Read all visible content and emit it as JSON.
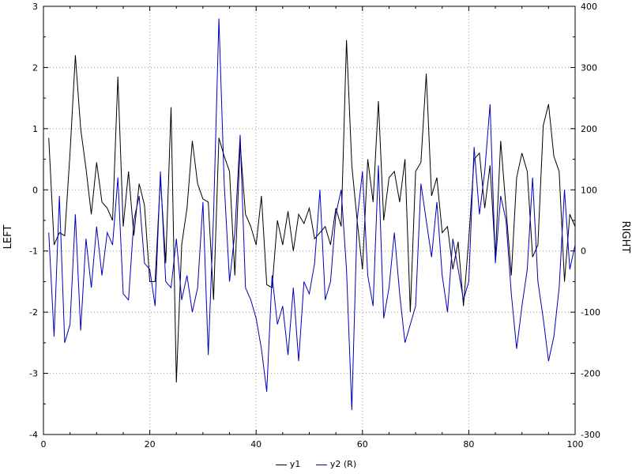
{
  "chart": {
    "left_axis_title": "LEFT",
    "right_axis_title": "RIGHT",
    "legend": [
      {
        "label": "y1",
        "color": "#000000"
      },
      {
        "label": "y2 (R)",
        "color": "#0000bb"
      }
    ],
    "grid_color": "#999999",
    "border_color": "#000000",
    "background": "#ffffff"
  },
  "chart_data": {
    "type": "line",
    "title": "",
    "xlabel": "",
    "left_ylabel": "LEFT",
    "right_ylabel": "RIGHT",
    "xlim": [
      0,
      100
    ],
    "left_ylim": [
      -4,
      3
    ],
    "right_ylim": [
      -300,
      400
    ],
    "x_ticks": [
      0,
      20,
      40,
      60,
      80,
      100
    ],
    "left_ticks": [
      -4,
      -3,
      -2,
      -1,
      0,
      1,
      2,
      3
    ],
    "right_ticks": [
      -300,
      -200,
      -100,
      0,
      100,
      200,
      300,
      400
    ],
    "grid": true,
    "legend_position": "bottom",
    "x": [
      1,
      2,
      3,
      4,
      5,
      6,
      7,
      8,
      9,
      10,
      11,
      12,
      13,
      14,
      15,
      16,
      17,
      18,
      19,
      20,
      21,
      22,
      23,
      24,
      25,
      26,
      27,
      28,
      29,
      30,
      31,
      32,
      33,
      34,
      35,
      36,
      37,
      38,
      39,
      40,
      41,
      42,
      43,
      44,
      45,
      46,
      47,
      48,
      49,
      50,
      51,
      52,
      53,
      54,
      55,
      56,
      57,
      58,
      59,
      60,
      61,
      62,
      63,
      64,
      65,
      66,
      67,
      68,
      69,
      70,
      71,
      72,
      73,
      74,
      75,
      76,
      77,
      78,
      79,
      80,
      81,
      82,
      83,
      84,
      85,
      86,
      87,
      88,
      89,
      90,
      91,
      92,
      93,
      94,
      95,
      96,
      97,
      98,
      99,
      100
    ],
    "series": [
      {
        "name": "y1",
        "axis": "left",
        "color": "#000000",
        "values": [
          0.85,
          -0.9,
          -0.7,
          -0.75,
          0.6,
          2.2,
          1.0,
          0.35,
          -0.4,
          0.45,
          -0.2,
          -0.3,
          -0.5,
          1.85,
          -0.6,
          0.3,
          -0.75,
          0.1,
          -0.25,
          -1.5,
          -1.5,
          0.2,
          -1.2,
          1.35,
          -3.15,
          -0.9,
          -0.3,
          0.8,
          0.1,
          -0.15,
          -0.2,
          -1.8,
          0.85,
          0.55,
          0.3,
          -1.4,
          0.75,
          -0.4,
          -0.6,
          -0.9,
          -0.1,
          -1.55,
          -1.6,
          -0.5,
          -0.9,
          -0.35,
          -1.0,
          -0.4,
          -0.55,
          -0.3,
          -0.8,
          -0.7,
          -0.6,
          -0.9,
          -0.3,
          -0.6,
          2.45,
          0.4,
          -0.5,
          -1.3,
          0.5,
          -0.2,
          1.45,
          -0.5,
          0.2,
          0.3,
          -0.2,
          0.5,
          -2.0,
          0.3,
          0.45,
          1.9,
          -0.1,
          0.2,
          -0.7,
          -0.6,
          -1.3,
          -0.85,
          -1.9,
          -0.8,
          0.5,
          0.6,
          -0.3,
          0.4,
          -1.1,
          0.8,
          -0.3,
          -1.4,
          0.2,
          0.6,
          0.3,
          -1.1,
          -0.9,
          1.05,
          1.4,
          0.55,
          0.3,
          -1.5,
          -0.4,
          -0.6
        ]
      },
      {
        "name": "y2 (R)",
        "axis": "right",
        "color": "#0000bb",
        "values": [
          30,
          -140,
          90,
          -150,
          -120,
          60,
          -130,
          20,
          -60,
          40,
          -40,
          30,
          10,
          120,
          -70,
          -80,
          50,
          90,
          -20,
          -30,
          -90,
          130,
          -50,
          -60,
          20,
          -80,
          -40,
          -100,
          -60,
          80,
          -170,
          60,
          380,
          110,
          -50,
          30,
          190,
          -60,
          -80,
          -110,
          -160,
          -230,
          -40,
          -120,
          -90,
          -170,
          -60,
          -180,
          -50,
          -70,
          -20,
          100,
          -80,
          -50,
          60,
          100,
          -30,
          -260,
          50,
          130,
          -40,
          -90,
          140,
          -110,
          -60,
          30,
          -70,
          -150,
          -120,
          -90,
          110,
          50,
          -10,
          80,
          -40,
          -100,
          20,
          -30,
          -80,
          -50,
          170,
          60,
          130,
          240,
          -20,
          90,
          50,
          -70,
          -160,
          -90,
          -30,
          120,
          -50,
          -110,
          -180,
          -140,
          -60,
          100,
          -30,
          10
        ]
      }
    ]
  }
}
